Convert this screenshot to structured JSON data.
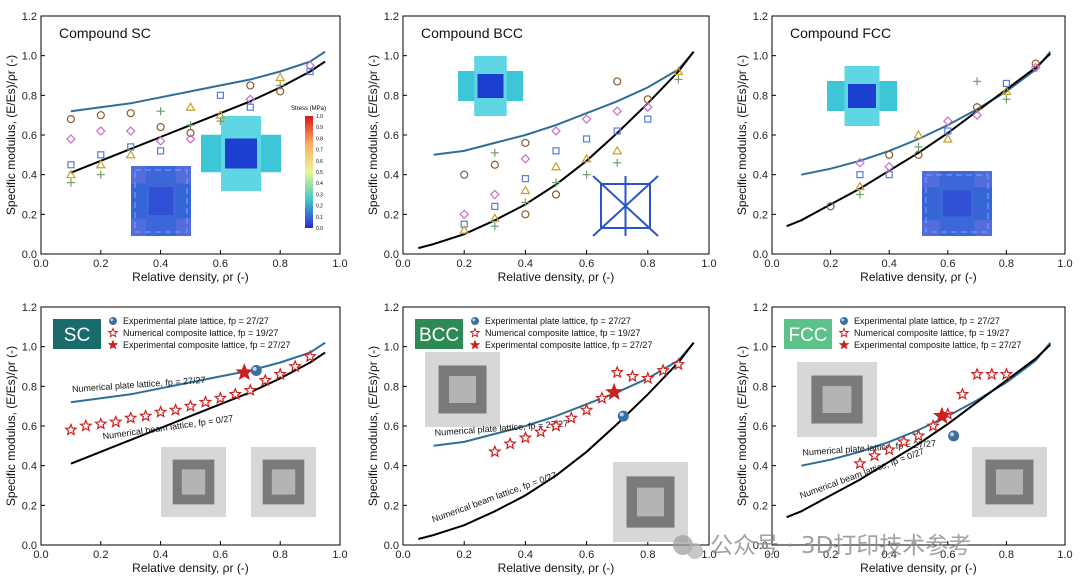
{
  "colors": {
    "plate": "#2e6e97",
    "beam": "#000000",
    "star": "#cc1f1f",
    "tag_dark": "#1a6b6b",
    "tag_mid": "#2e8a55",
    "tag_light": "#5cc28a"
  },
  "watermark": "公众号 · 3D打印技术参考",
  "colorbar": {
    "title": "Stress (MPa)",
    "ticks": [
      "1.0",
      "0.9",
      "0.8",
      "0.7",
      "0.6",
      "0.5",
      "0.4",
      "0.3",
      "0.2",
      "0.1",
      "0.0"
    ]
  },
  "chart_data": [
    {
      "type": "scatter",
      "title": "Compound SC",
      "xlabel": "Relative density, ρr (-)",
      "ylabel": "Specific modulus, (E/Es)/ρr (-)",
      "xlim": [
        0.0,
        1.0
      ],
      "ylim": [
        0.0,
        1.2
      ],
      "xticks": [
        "0.0",
        "0.2",
        "0.4",
        "0.6",
        "0.8",
        "1.0"
      ],
      "yticks": [
        "0.0",
        "0.2",
        "0.4",
        "0.6",
        "0.8",
        "1.0",
        "1.2"
      ],
      "series": [
        {
          "kind": "line",
          "role": "plate",
          "x": [
            0.1,
            0.2,
            0.3,
            0.4,
            0.5,
            0.6,
            0.7,
            0.8,
            0.9,
            0.95
          ],
          "y": [
            0.72,
            0.74,
            0.76,
            0.79,
            0.82,
            0.85,
            0.88,
            0.92,
            0.97,
            1.02
          ]
        },
        {
          "kind": "line",
          "role": "beam",
          "x": [
            0.1,
            0.2,
            0.3,
            0.4,
            0.5,
            0.6,
            0.7,
            0.8,
            0.9,
            0.95
          ],
          "y": [
            0.41,
            0.47,
            0.53,
            0.59,
            0.65,
            0.71,
            0.77,
            0.84,
            0.92,
            0.97
          ]
        },
        {
          "kind": "markers",
          "role": "composite",
          "x": [
            0.1,
            0.1,
            0.1,
            0.1,
            0.1,
            0.2,
            0.2,
            0.2,
            0.2,
            0.2,
            0.3,
            0.3,
            0.3,
            0.3,
            0.4,
            0.4,
            0.4,
            0.4,
            0.5,
            0.5,
            0.5,
            0.5,
            0.6,
            0.6,
            0.6,
            0.7,
            0.7,
            0.7,
            0.8,
            0.8,
            0.8,
            0.9,
            0.9
          ],
          "y": [
            0.68,
            0.58,
            0.45,
            0.4,
            0.36,
            0.7,
            0.62,
            0.5,
            0.45,
            0.4,
            0.71,
            0.62,
            0.54,
            0.5,
            0.72,
            0.64,
            0.57,
            0.52,
            0.74,
            0.65,
            0.61,
            0.58,
            0.8,
            0.7,
            0.67,
            0.85,
            0.78,
            0.74,
            0.89,
            0.85,
            0.82,
            0.95,
            0.92
          ]
        }
      ]
    },
    {
      "type": "scatter",
      "title": "Compound BCC",
      "xlabel": "Relative density, ρr (-)",
      "ylabel": "Specific modulus, (E/Es)/ρr (-)",
      "xlim": [
        0.0,
        1.0
      ],
      "ylim": [
        0.0,
        1.2
      ],
      "xticks": [
        "0.0",
        "0.2",
        "0.4",
        "0.6",
        "0.8",
        "1.0"
      ],
      "yticks": [
        "0.0",
        "0.2",
        "0.4",
        "0.6",
        "0.8",
        "1.0",
        "1.2"
      ],
      "series": [
        {
          "kind": "line",
          "role": "plate",
          "x": [
            0.1,
            0.2,
            0.3,
            0.4,
            0.5,
            0.6,
            0.7,
            0.8,
            0.9,
            0.95
          ],
          "y": [
            0.5,
            0.52,
            0.56,
            0.6,
            0.65,
            0.71,
            0.77,
            0.84,
            0.93,
            1.02
          ]
        },
        {
          "kind": "line",
          "role": "beam",
          "x": [
            0.05,
            0.1,
            0.2,
            0.3,
            0.4,
            0.5,
            0.6,
            0.7,
            0.8,
            0.9,
            0.95
          ],
          "y": [
            0.03,
            0.05,
            0.1,
            0.17,
            0.25,
            0.35,
            0.47,
            0.61,
            0.76,
            0.92,
            1.02
          ]
        },
        {
          "kind": "markers",
          "role": "composite",
          "x": [
            0.2,
            0.2,
            0.2,
            0.2,
            0.3,
            0.3,
            0.3,
            0.3,
            0.3,
            0.3,
            0.4,
            0.4,
            0.4,
            0.4,
            0.4,
            0.4,
            0.5,
            0.5,
            0.5,
            0.5,
            0.5,
            0.6,
            0.6,
            0.6,
            0.6,
            0.7,
            0.7,
            0.7,
            0.7,
            0.7,
            0.8,
            0.8,
            0.8,
            0.9,
            0.9
          ],
          "y": [
            0.4,
            0.2,
            0.15,
            0.12,
            0.51,
            0.45,
            0.3,
            0.24,
            0.18,
            0.14,
            0.56,
            0.48,
            0.38,
            0.32,
            0.26,
            0.2,
            0.62,
            0.52,
            0.44,
            0.36,
            0.3,
            0.68,
            0.58,
            0.48,
            0.4,
            0.87,
            0.72,
            0.62,
            0.52,
            0.46,
            0.78,
            0.74,
            0.68,
            0.92,
            0.88
          ]
        }
      ]
    },
    {
      "type": "scatter",
      "title": "Compound FCC",
      "xlabel": "Relative density, ρr (-)",
      "ylabel": "Specific modulus, (E/Es)/ρr (-)",
      "xlim": [
        0.0,
        1.0
      ],
      "ylim": [
        0.0,
        1.2
      ],
      "xticks": [
        "0.0",
        "0.2",
        "0.4",
        "0.6",
        "0.8",
        "1.0"
      ],
      "yticks": [
        "0.0",
        "0.2",
        "0.4",
        "0.6",
        "0.8",
        "1.0",
        "1.2"
      ],
      "series": [
        {
          "kind": "line",
          "role": "plate",
          "x": [
            0.1,
            0.2,
            0.3,
            0.4,
            0.5,
            0.6,
            0.7,
            0.8,
            0.9,
            0.95
          ],
          "y": [
            0.4,
            0.43,
            0.47,
            0.52,
            0.58,
            0.65,
            0.73,
            0.82,
            0.93,
            1.02
          ]
        },
        {
          "kind": "line",
          "role": "beam",
          "x": [
            0.05,
            0.1,
            0.2,
            0.3,
            0.4,
            0.5,
            0.6,
            0.7,
            0.8,
            0.9,
            0.95
          ],
          "y": [
            0.14,
            0.17,
            0.25,
            0.33,
            0.42,
            0.51,
            0.61,
            0.72,
            0.83,
            0.94,
            1.01
          ]
        },
        {
          "kind": "markers",
          "role": "composite",
          "x": [
            0.2,
            0.3,
            0.3,
            0.3,
            0.3,
            0.4,
            0.4,
            0.4,
            0.5,
            0.5,
            0.5,
            0.6,
            0.6,
            0.6,
            0.7,
            0.7,
            0.7,
            0.8,
            0.8,
            0.8,
            0.9,
            0.9
          ],
          "y": [
            0.24,
            0.46,
            0.4,
            0.34,
            0.3,
            0.5,
            0.44,
            0.4,
            0.6,
            0.54,
            0.5,
            0.67,
            0.62,
            0.58,
            0.87,
            0.74,
            0.7,
            0.86,
            0.82,
            0.78,
            0.96,
            0.94
          ]
        }
      ]
    },
    {
      "type": "scatter",
      "tag": "SC",
      "xlabel": "Relative density, ρr (-)",
      "ylabel": "Specific modulus, (E/Es)/ρr (-)",
      "xlim": [
        0.0,
        1.0
      ],
      "ylim": [
        0.0,
        1.2
      ],
      "xticks": [
        "0.0",
        "0.2",
        "0.4",
        "0.6",
        "0.8",
        "1.0"
      ],
      "yticks": [
        "0.0",
        "0.2",
        "0.4",
        "0.6",
        "0.8",
        "1.0",
        "1.2"
      ],
      "legend": [
        "Experimental plate lattice, fp = 27/27",
        "Numerical composite lattice, fp = 19/27",
        "Experimental composite lattice, fp = 27/27"
      ],
      "line_labels": {
        "plate": "Numerical plate lattice, fp = 27/27",
        "beam": "Numerical beam lattice, fp = 0/27"
      },
      "series": [
        {
          "kind": "line",
          "role": "plate",
          "x": [
            0.1,
            0.2,
            0.3,
            0.4,
            0.5,
            0.6,
            0.7,
            0.8,
            0.9,
            0.95
          ],
          "y": [
            0.72,
            0.74,
            0.76,
            0.79,
            0.82,
            0.85,
            0.88,
            0.92,
            0.97,
            1.02
          ]
        },
        {
          "kind": "line",
          "role": "beam",
          "x": [
            0.1,
            0.2,
            0.3,
            0.4,
            0.5,
            0.6,
            0.7,
            0.8,
            0.9,
            0.95
          ],
          "y": [
            0.41,
            0.47,
            0.53,
            0.59,
            0.65,
            0.71,
            0.77,
            0.84,
            0.92,
            0.97
          ]
        },
        {
          "kind": "open_star",
          "role": "numerical composite",
          "x": [
            0.1,
            0.15,
            0.2,
            0.25,
            0.3,
            0.35,
            0.4,
            0.45,
            0.5,
            0.55,
            0.6,
            0.65,
            0.7,
            0.75,
            0.8,
            0.85,
            0.9
          ],
          "y": [
            0.58,
            0.6,
            0.61,
            0.62,
            0.64,
            0.65,
            0.67,
            0.68,
            0.7,
            0.72,
            0.74,
            0.76,
            0.78,
            0.83,
            0.86,
            0.9,
            0.95
          ]
        },
        {
          "kind": "filled_star",
          "role": "experimental composite",
          "x": [
            0.68
          ],
          "y": [
            0.87
          ]
        },
        {
          "kind": "sphere",
          "role": "experimental plate",
          "x": [
            0.72
          ],
          "y": [
            0.88
          ]
        }
      ]
    },
    {
      "type": "scatter",
      "tag": "BCC",
      "xlabel": "Relative density, ρr (-)",
      "ylabel": "Specific modulus, (E/Es)/ρr (-)",
      "xlim": [
        0.0,
        1.0
      ],
      "ylim": [
        0.0,
        1.2
      ],
      "xticks": [
        "0.0",
        "0.2",
        "0.4",
        "0.6",
        "0.8",
        "1.0"
      ],
      "yticks": [
        "0.0",
        "0.2",
        "0.4",
        "0.6",
        "0.8",
        "1.0",
        "1.2"
      ],
      "legend": [
        "Experimental plate lattice, fp = 27/27",
        "Numerical composite lattice, fp = 19/27",
        "Experimental composite lattice, fp = 27/27"
      ],
      "line_labels": {
        "plate": "Numerical plate lattice, fp = 27/27",
        "beam": "Numerical beam lattice, fp = 0/27"
      },
      "series": [
        {
          "kind": "line",
          "role": "plate",
          "x": [
            0.1,
            0.2,
            0.3,
            0.4,
            0.5,
            0.6,
            0.7,
            0.8,
            0.9,
            0.95
          ],
          "y": [
            0.5,
            0.52,
            0.56,
            0.6,
            0.65,
            0.71,
            0.77,
            0.84,
            0.93,
            1.02
          ]
        },
        {
          "kind": "line",
          "role": "beam",
          "x": [
            0.05,
            0.1,
            0.2,
            0.3,
            0.4,
            0.5,
            0.6,
            0.7,
            0.8,
            0.9,
            0.95
          ],
          "y": [
            0.03,
            0.05,
            0.1,
            0.17,
            0.25,
            0.35,
            0.47,
            0.61,
            0.76,
            0.92,
            1.02
          ]
        },
        {
          "kind": "open_star",
          "role": "numerical composite",
          "x": [
            0.3,
            0.35,
            0.4,
            0.45,
            0.5,
            0.55,
            0.6,
            0.65,
            0.7,
            0.75,
            0.8,
            0.85,
            0.9
          ],
          "y": [
            0.47,
            0.51,
            0.54,
            0.57,
            0.6,
            0.64,
            0.68,
            0.74,
            0.87,
            0.85,
            0.84,
            0.88,
            0.91
          ]
        },
        {
          "kind": "filled_star",
          "role": "experimental composite",
          "x": [
            0.69
          ],
          "y": [
            0.77
          ]
        },
        {
          "kind": "sphere",
          "role": "experimental plate",
          "x": [
            0.72
          ],
          "y": [
            0.65
          ]
        }
      ]
    },
    {
      "type": "scatter",
      "tag": "FCC",
      "xlabel": "Relative density, ρr (-)",
      "ylabel": "Specific modulus, (E/Es)/ρr (-)",
      "xlim": [
        0.0,
        1.0
      ],
      "ylim": [
        0.0,
        1.2
      ],
      "xticks": [
        "0.0",
        "0.2",
        "0.4",
        "0.6",
        "0.8",
        "1.0"
      ],
      "yticks": [
        "0.0",
        "0.2",
        "0.4",
        "0.6",
        "0.8",
        "1.0",
        "1.2"
      ],
      "legend": [
        "Experimental plate lattice, fp = 27/27",
        "Numerical composite lattice, fp = 19/27",
        "Experimental composite lattice, fp = 27/27"
      ],
      "line_labels": {
        "plate": "Numerical plate lattice, fp = 27/27",
        "beam": "Numerical beam lattice, fp = 0/27"
      },
      "series": [
        {
          "kind": "line",
          "role": "plate",
          "x": [
            0.1,
            0.2,
            0.3,
            0.4,
            0.5,
            0.6,
            0.7,
            0.8,
            0.9,
            0.95
          ],
          "y": [
            0.4,
            0.43,
            0.47,
            0.52,
            0.58,
            0.65,
            0.73,
            0.82,
            0.93,
            1.02
          ]
        },
        {
          "kind": "line",
          "role": "beam",
          "x": [
            0.05,
            0.1,
            0.2,
            0.3,
            0.4,
            0.5,
            0.6,
            0.7,
            0.8,
            0.9,
            0.95
          ],
          "y": [
            0.14,
            0.17,
            0.25,
            0.33,
            0.42,
            0.51,
            0.61,
            0.72,
            0.83,
            0.94,
            1.01
          ]
        },
        {
          "kind": "open_star",
          "role": "numerical composite",
          "x": [
            0.3,
            0.35,
            0.4,
            0.45,
            0.5,
            0.55,
            0.6,
            0.65,
            0.7,
            0.75,
            0.8
          ],
          "y": [
            0.41,
            0.45,
            0.48,
            0.52,
            0.55,
            0.6,
            0.66,
            0.76,
            0.86,
            0.86,
            0.86
          ]
        },
        {
          "kind": "filled_star",
          "role": "experimental composite",
          "x": [
            0.58
          ],
          "y": [
            0.65
          ]
        },
        {
          "kind": "sphere",
          "role": "experimental plate",
          "x": [
            0.62
          ],
          "y": [
            0.55
          ]
        }
      ]
    }
  ]
}
